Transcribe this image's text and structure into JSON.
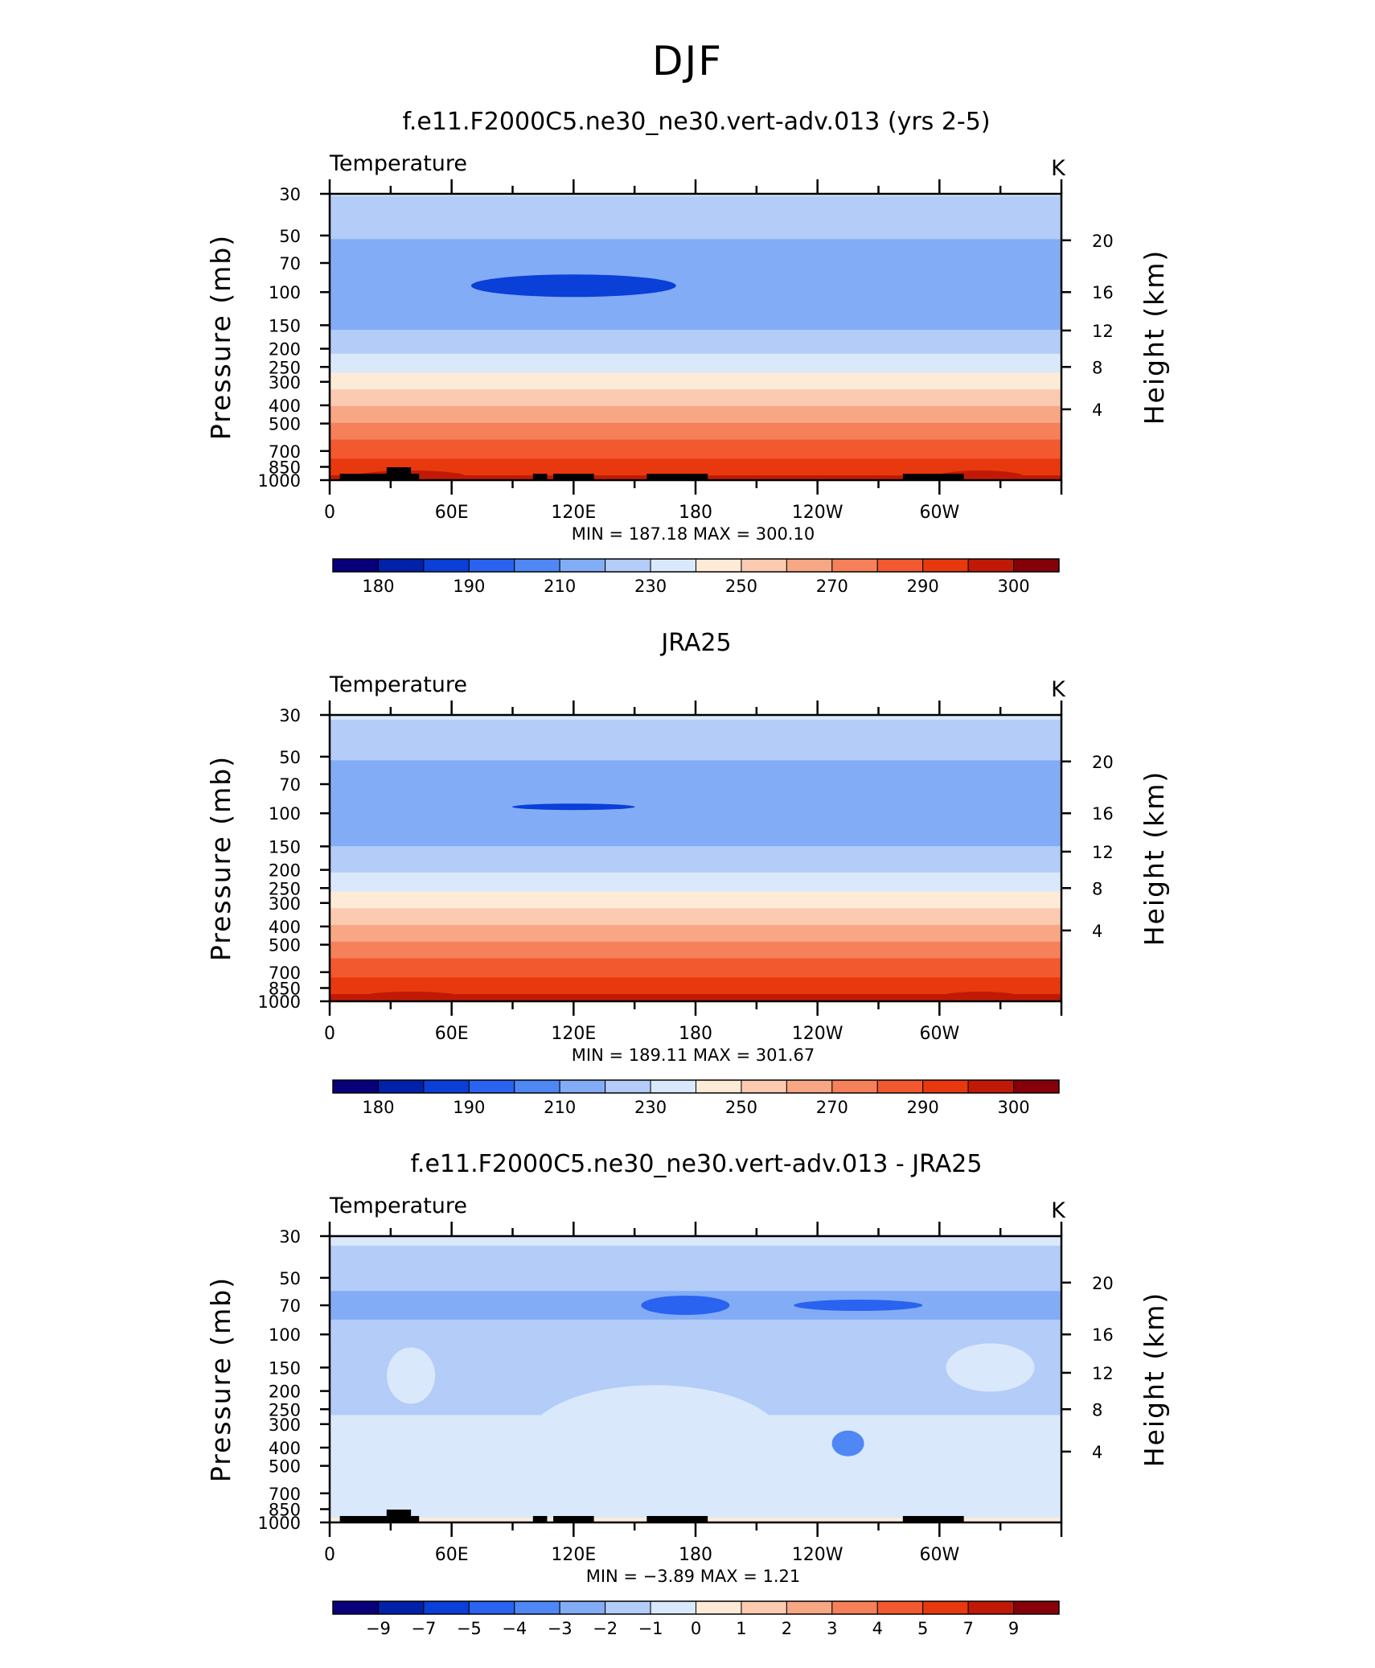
{
  "page_title": "DJF",
  "chart_data": [
    {
      "type": "heatmap",
      "title": "f.e11.F2000C5.ne30_ne30.vert-adv.013 (yrs 2-5)",
      "variable": "Temperature",
      "units": "K",
      "ylabel": "Pressure (mb)",
      "ylabel_right": "Height (km)",
      "x_ticks": [
        "0",
        "60E",
        "120E",
        "180",
        "120W",
        "60W"
      ],
      "x_tick_values": [
        0,
        60,
        120,
        180,
        240,
        300
      ],
      "xlim": [
        0,
        360
      ],
      "y_ticks": [
        "30",
        "50",
        "70",
        "100",
        "150",
        "200",
        "250",
        "300",
        "400",
        "500",
        "700",
        "850",
        "1000"
      ],
      "y_tick_values": [
        30,
        50,
        70,
        100,
        150,
        200,
        250,
        300,
        400,
        500,
        700,
        850,
        1000
      ],
      "ylim": [
        30,
        1000
      ],
      "y_scale": "log",
      "right_ticks": [
        "20",
        "16",
        "12",
        "8",
        "4"
      ],
      "right_tick_values": [
        20,
        16,
        12,
        8,
        4
      ],
      "min": "187.18",
      "max": "300.10",
      "stats_label": "MIN = 187.18 MAX = 300.10",
      "colorbar_labels": [
        "180",
        "190",
        "210",
        "230",
        "250",
        "270",
        "290",
        "300"
      ],
      "colorbar_colors": [
        "#08007b",
        "#0021a8",
        "#0a3fd8",
        "#2a63ef",
        "#4f87f4",
        "#83acf6",
        "#b3ccf8",
        "#d9e9fb",
        "#fdebd8",
        "#fbcab0",
        "#f8a784",
        "#f5805a",
        "#f2592f",
        "#e8390e",
        "#c01a06",
        "#86000a"
      ],
      "levels_by_pressure": [
        {
          "pressure": 30,
          "temperature": 221
        },
        {
          "pressure": 40,
          "temperature": 214
        },
        {
          "pressure": 55,
          "temperature": 209
        },
        {
          "pressure": 70,
          "temperature": 205
        },
        {
          "pressure": 100,
          "temperature": 202
        },
        {
          "pressure": 130,
          "temperature": 205
        },
        {
          "pressure": 170,
          "temperature": 212
        },
        {
          "pressure": 200,
          "temperature": 218
        },
        {
          "pressure": 250,
          "temperature": 227
        },
        {
          "pressure": 300,
          "temperature": 236
        },
        {
          "pressure": 400,
          "temperature": 250
        },
        {
          "pressure": 500,
          "temperature": 261
        },
        {
          "pressure": 600,
          "temperature": 270
        },
        {
          "pressure": 700,
          "temperature": 276
        },
        {
          "pressure": 850,
          "temperature": 285
        },
        {
          "pressure": 1000,
          "temperature": 293
        }
      ],
      "topography": true
    },
    {
      "type": "heatmap",
      "title": "JRA25",
      "variable": "Temperature",
      "units": "K",
      "ylabel": "Pressure (mb)",
      "ylabel_right": "Height (km)",
      "x_ticks": [
        "0",
        "60E",
        "120E",
        "180",
        "120W",
        "60W"
      ],
      "x_tick_values": [
        0,
        60,
        120,
        180,
        240,
        300
      ],
      "xlim": [
        0,
        360
      ],
      "y_ticks": [
        "30",
        "50",
        "70",
        "100",
        "150",
        "200",
        "250",
        "300",
        "400",
        "500",
        "700",
        "850",
        "1000"
      ],
      "y_tick_values": [
        30,
        50,
        70,
        100,
        150,
        200,
        250,
        300,
        400,
        500,
        700,
        850,
        1000
      ],
      "ylim": [
        30,
        1000
      ],
      "y_scale": "log",
      "right_ticks": [
        "20",
        "16",
        "12",
        "8",
        "4"
      ],
      "right_tick_values": [
        20,
        16,
        12,
        8,
        4
      ],
      "min": "189.11",
      "max": "301.67",
      "stats_label": "MIN = 189.11 MAX = 301.67",
      "colorbar_labels": [
        "180",
        "190",
        "210",
        "230",
        "250",
        "270",
        "290",
        "300"
      ],
      "colorbar_colors": [
        "#08007b",
        "#0021a8",
        "#0a3fd8",
        "#2a63ef",
        "#4f87f4",
        "#83acf6",
        "#b3ccf8",
        "#d9e9fb",
        "#fdebd8",
        "#fbcab0",
        "#f8a784",
        "#f5805a",
        "#f2592f",
        "#e8390e",
        "#c01a06",
        "#86000a"
      ],
      "levels_by_pressure": [
        {
          "pressure": 30,
          "temperature": 222
        },
        {
          "pressure": 40,
          "temperature": 214
        },
        {
          "pressure": 55,
          "temperature": 209
        },
        {
          "pressure": 70,
          "temperature": 205
        },
        {
          "pressure": 100,
          "temperature": 203
        },
        {
          "pressure": 130,
          "temperature": 206
        },
        {
          "pressure": 170,
          "temperature": 213
        },
        {
          "pressure": 200,
          "temperature": 219
        },
        {
          "pressure": 250,
          "temperature": 228
        },
        {
          "pressure": 300,
          "temperature": 237
        },
        {
          "pressure": 400,
          "temperature": 251
        },
        {
          "pressure": 500,
          "temperature": 262
        },
        {
          "pressure": 600,
          "temperature": 271
        },
        {
          "pressure": 700,
          "temperature": 277
        },
        {
          "pressure": 850,
          "temperature": 286
        },
        {
          "pressure": 1000,
          "temperature": 294
        }
      ],
      "topography": false
    },
    {
      "type": "heatmap",
      "title": "f.e11.F2000C5.ne30_ne30.vert-adv.013 - JRA25",
      "variable": "Temperature",
      "units": "K",
      "ylabel": "Pressure (mb)",
      "ylabel_right": "Height (km)",
      "x_ticks": [
        "0",
        "60E",
        "120E",
        "180",
        "120W",
        "60W"
      ],
      "x_tick_values": [
        0,
        60,
        120,
        180,
        240,
        300
      ],
      "xlim": [
        0,
        360
      ],
      "y_ticks": [
        "30",
        "50",
        "70",
        "100",
        "150",
        "200",
        "250",
        "300",
        "400",
        "500",
        "700",
        "850",
        "1000"
      ],
      "y_tick_values": [
        30,
        50,
        70,
        100,
        150,
        200,
        250,
        300,
        400,
        500,
        700,
        850,
        1000
      ],
      "ylim": [
        30,
        1000
      ],
      "y_scale": "log",
      "right_ticks": [
        "20",
        "16",
        "12",
        "8",
        "4"
      ],
      "right_tick_values": [
        20,
        16,
        12,
        8,
        4
      ],
      "min": "−3.89",
      "max": "1.21",
      "stats_label": "MIN = −3.89 MAX = 1.21",
      "colorbar_labels": [
        "−9",
        "−7",
        "−5",
        "−4",
        "−3",
        "−2",
        "−1",
        "0",
        "1",
        "2",
        "3",
        "4",
        "5",
        "7",
        "9"
      ],
      "colorbar_colors": [
        "#08007b",
        "#0021a8",
        "#0a3fd8",
        "#2a63ef",
        "#4f87f4",
        "#83acf6",
        "#b3ccf8",
        "#d9e9fb",
        "#fdebd8",
        "#fbcab0",
        "#f8a784",
        "#f5805a",
        "#f2592f",
        "#e8390e",
        "#c01a06",
        "#86000a"
      ],
      "levels_by_pressure": [
        {
          "pressure": 30,
          "difference": -0.8
        },
        {
          "pressure": 50,
          "difference": -1.6
        },
        {
          "pressure": 70,
          "difference": -2.4
        },
        {
          "pressure": 100,
          "difference": -1.6
        },
        {
          "pressure": 150,
          "difference": -1.4
        },
        {
          "pressure": 200,
          "difference": -1.3
        },
        {
          "pressure": 300,
          "difference": -0.9
        },
        {
          "pressure": 400,
          "difference": -0.8
        },
        {
          "pressure": 500,
          "difference": -0.9
        },
        {
          "pressure": 700,
          "difference": -0.7
        },
        {
          "pressure": 850,
          "difference": -0.5
        },
        {
          "pressure": 1000,
          "difference": 0.3
        }
      ],
      "topography": true
    }
  ]
}
